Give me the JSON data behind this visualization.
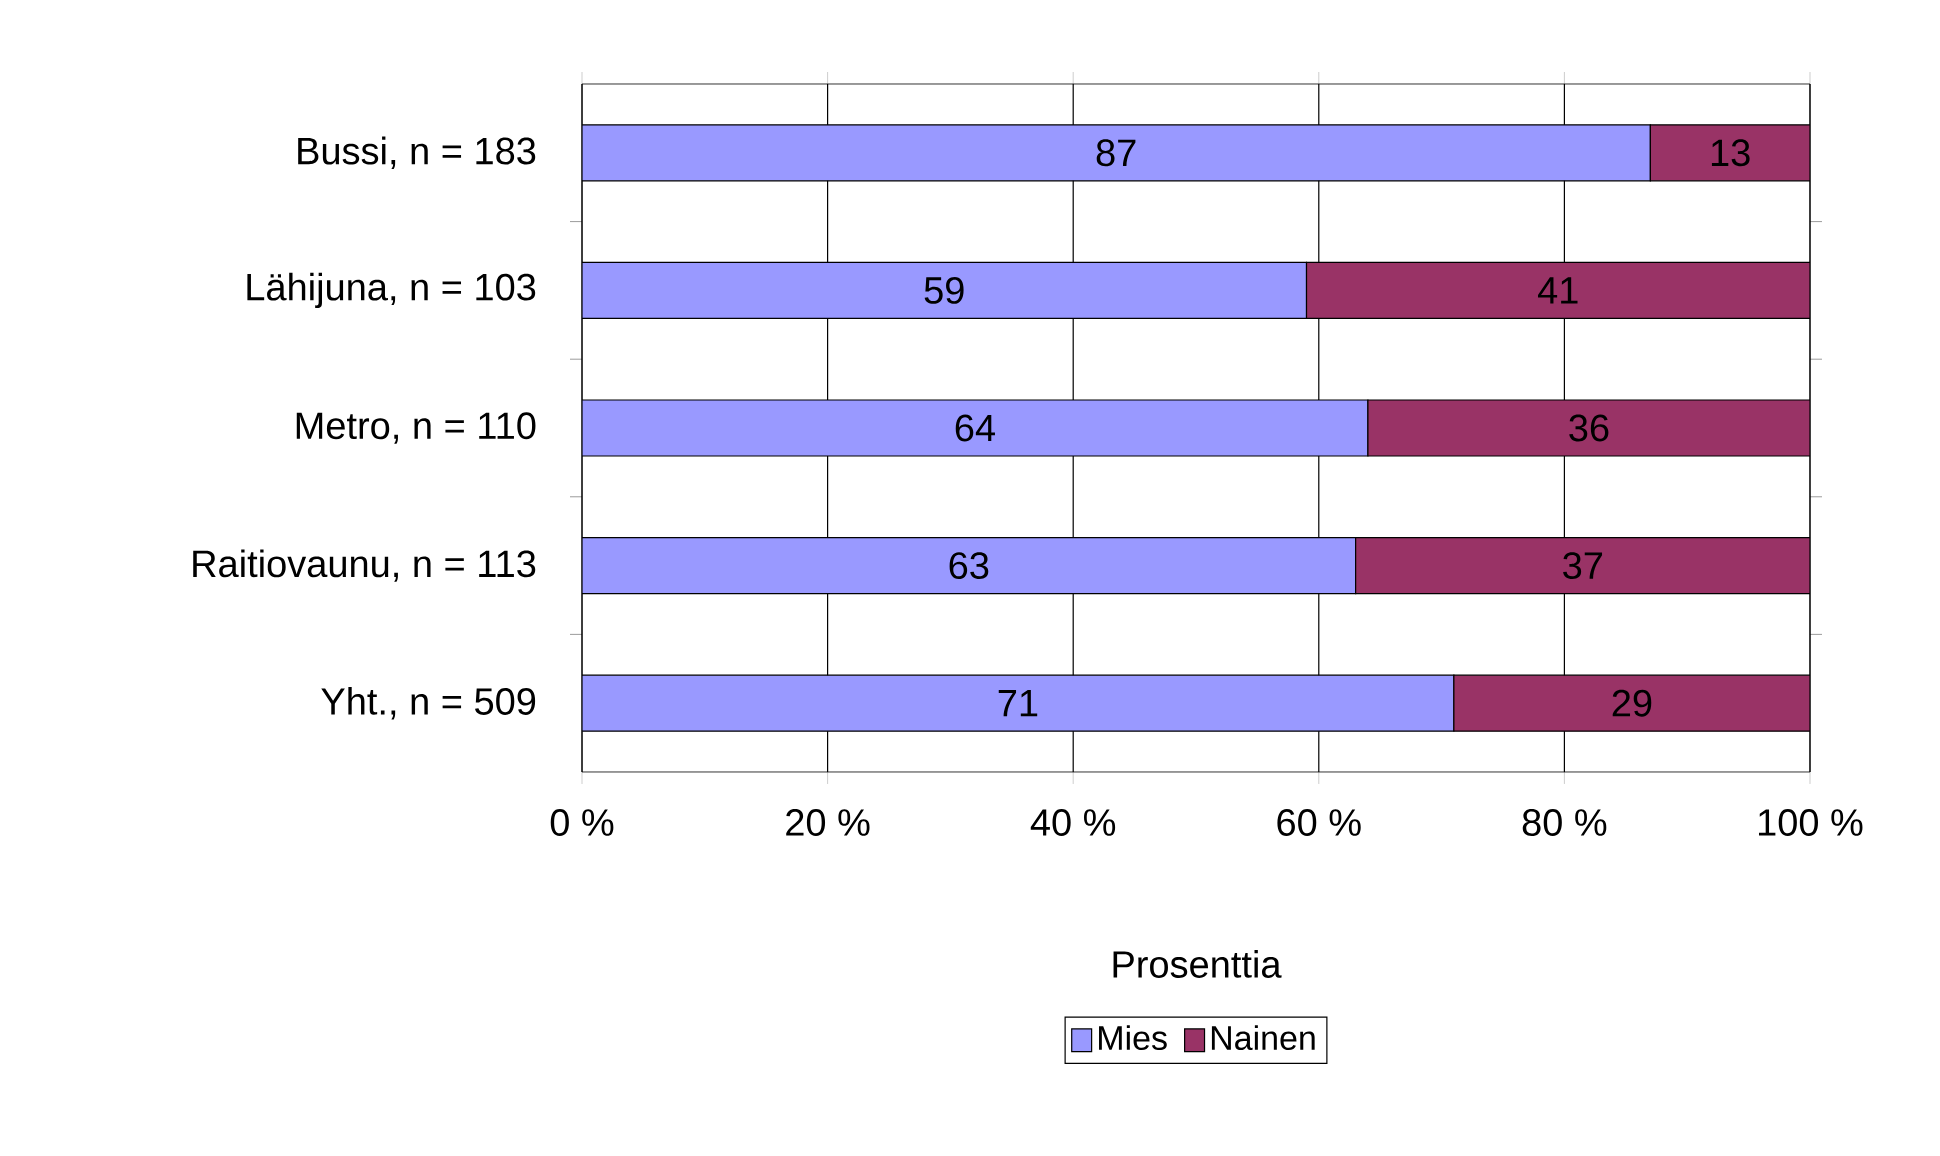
{
  "chart_data": {
    "type": "bar",
    "orientation": "horizontal",
    "stacked": true,
    "categories": [
      "Bussi, n = 183",
      "Lähijuna, n = 103",
      "Metro, n = 110",
      "Raitiovaunu, n = 113",
      "Yht., n = 509"
    ],
    "series": [
      {
        "name": "Mies",
        "color": "#9999ff",
        "values": [
          87,
          59,
          64,
          63,
          71
        ]
      },
      {
        "name": "Nainen",
        "color": "#993366",
        "values": [
          13,
          41,
          36,
          37,
          29
        ]
      }
    ],
    "xlabel": "Prosenttia",
    "xlim": [
      0,
      100
    ],
    "xticks": [
      {
        "value": 0,
        "label": "0 %"
      },
      {
        "value": 20,
        "label": "20 %"
      },
      {
        "value": 40,
        "label": "40 %"
      },
      {
        "value": 60,
        "label": "60 %"
      },
      {
        "value": 80,
        "label": "80 %"
      },
      {
        "value": 100,
        "label": "100 %"
      }
    ],
    "grid": "x",
    "legend": "bottom",
    "data_labels": true
  }
}
